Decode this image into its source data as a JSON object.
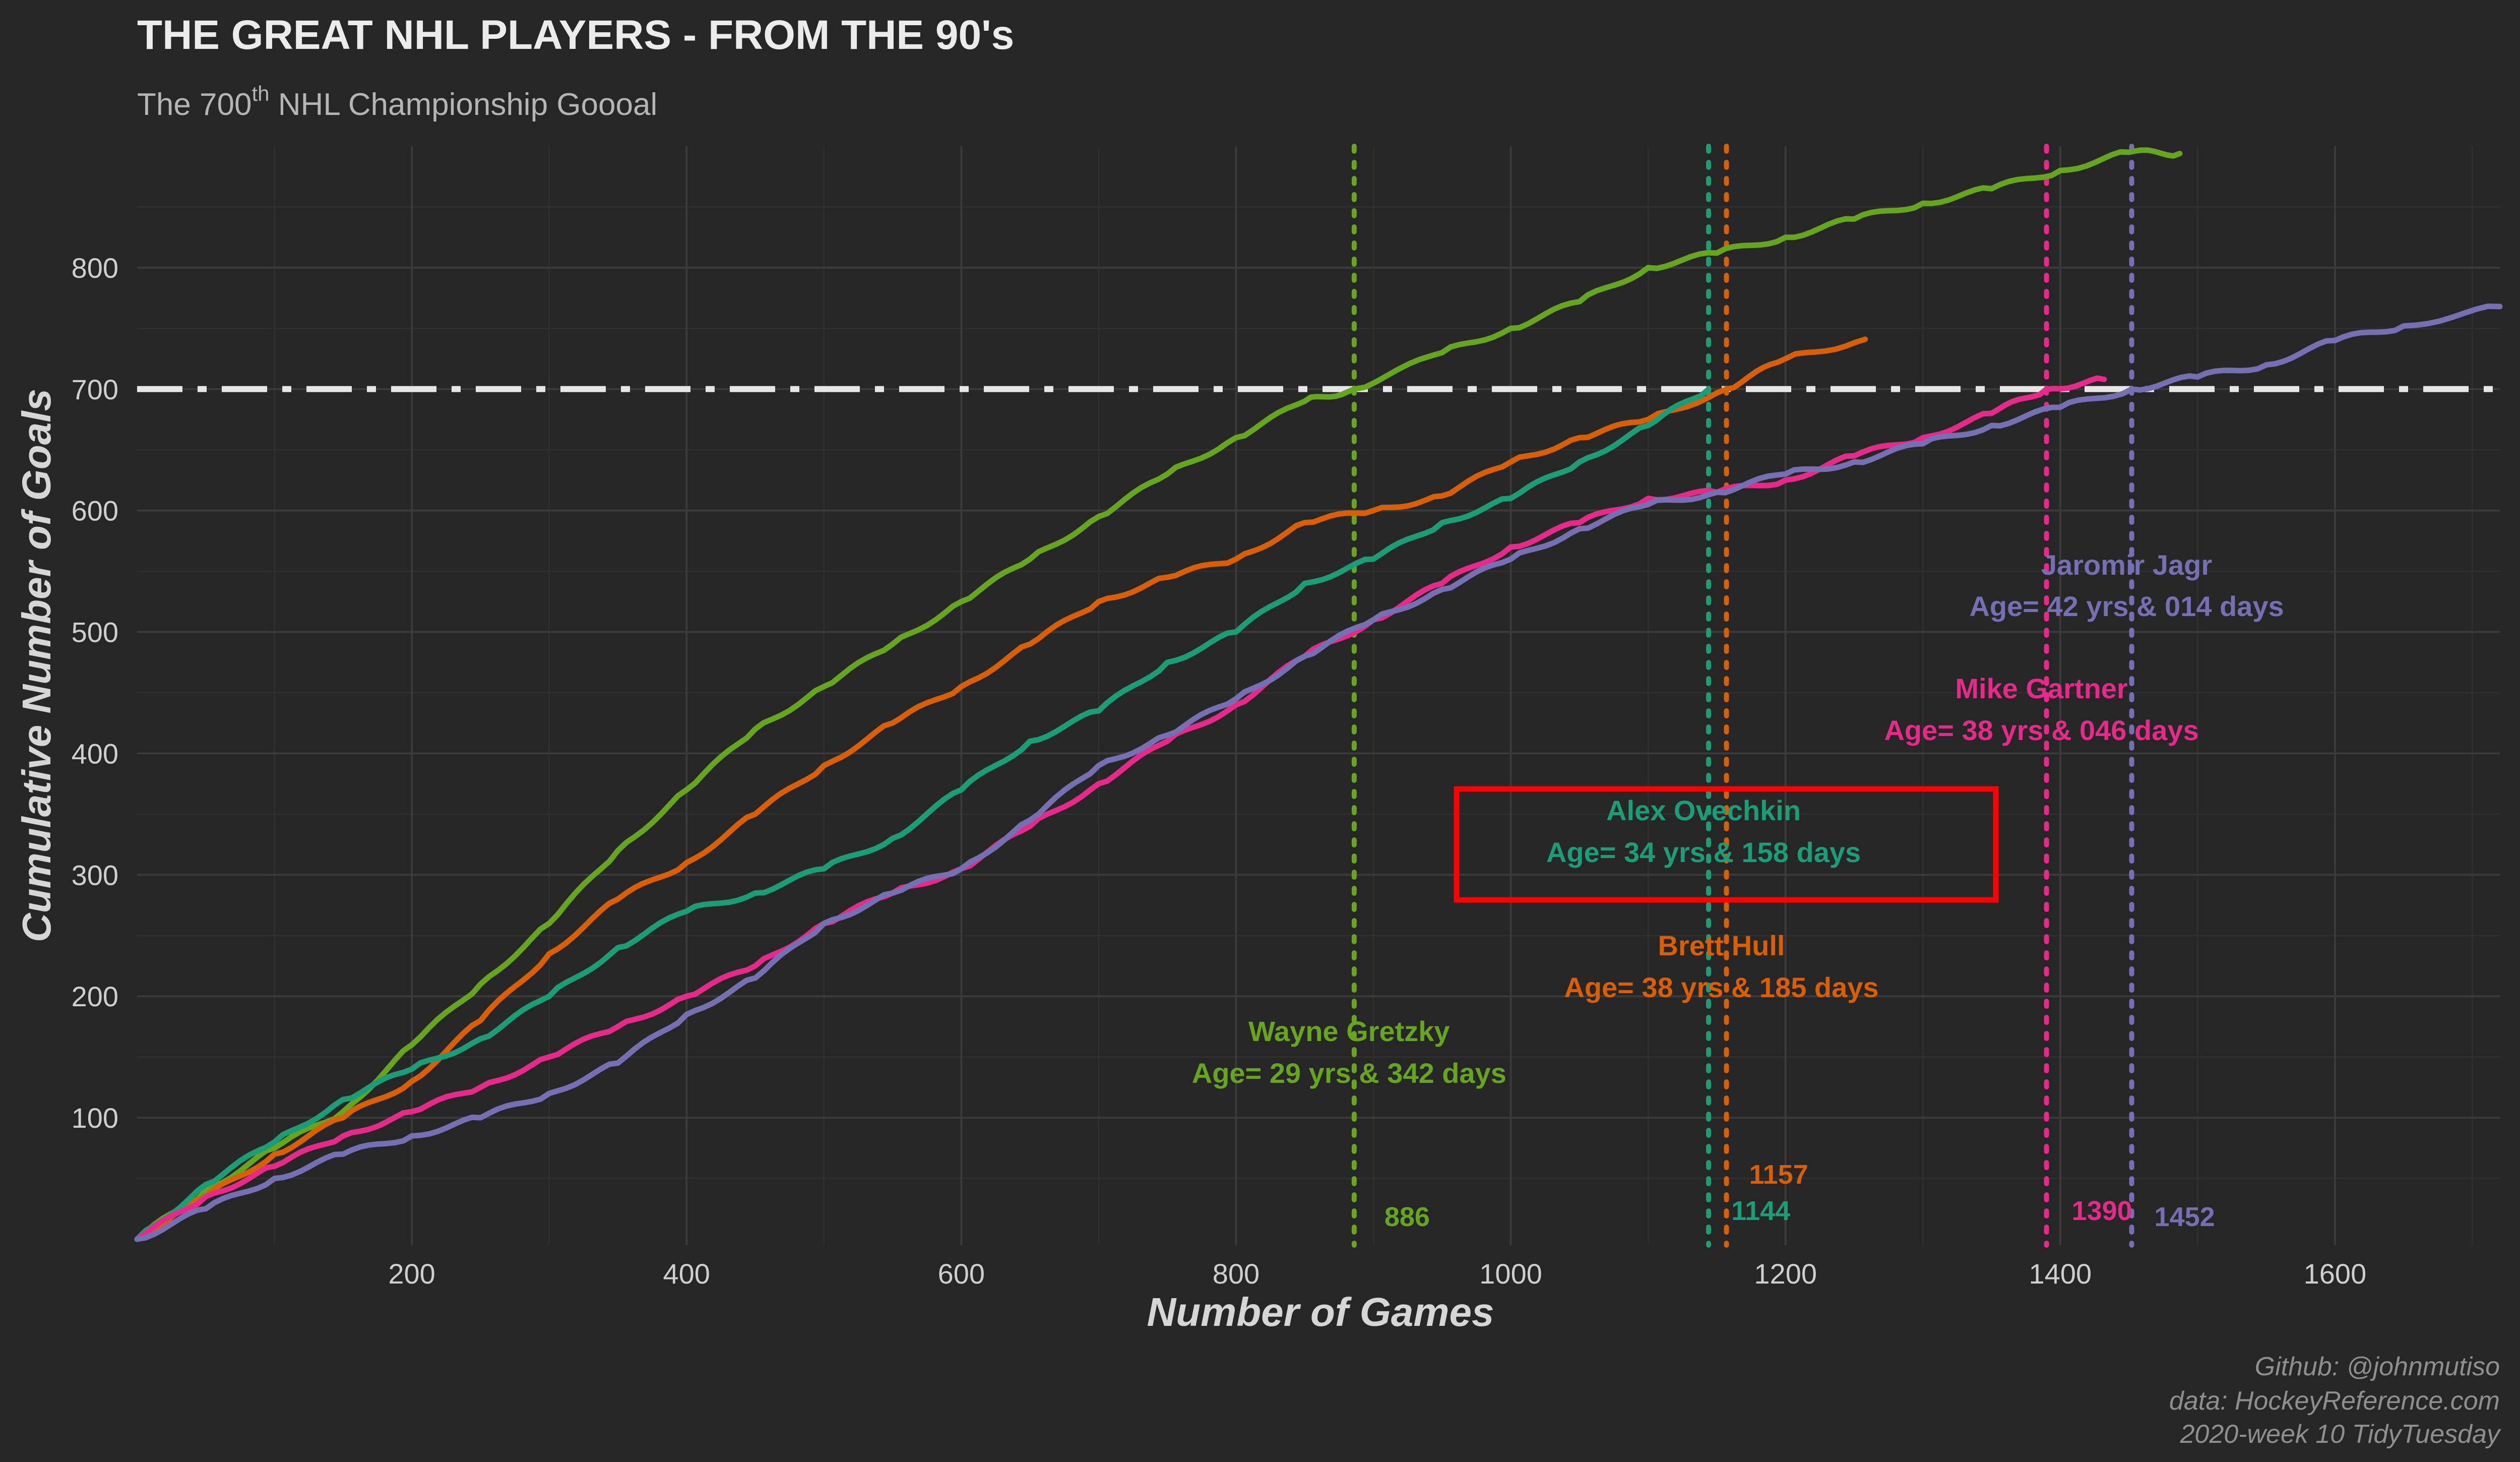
{
  "chart_data": {
    "type": "line",
    "title": "THE GREAT NHL PLAYERS - FROM THE 90's",
    "subtitle": {
      "pre": "The 700",
      "sup": "th",
      "post": " NHL Championship Goooal"
    },
    "xlabel": "Number of Games",
    "ylabel": "Cumulative Number of Goals",
    "xlim": [
      0,
      1720
    ],
    "ylim": [
      -5,
      900
    ],
    "xticks": [
      200,
      400,
      600,
      800,
      1000,
      1200,
      1400,
      1600
    ],
    "yticks": [
      100,
      200,
      300,
      400,
      500,
      600,
      700,
      800
    ],
    "grid": true,
    "reference_line": {
      "y": 700
    },
    "caption": [
      "Github: @johnmutiso",
      "data: HockeyReference.com",
      "2020-week 10 TidyTuesday"
    ],
    "series": [
      {
        "name": "Wayne Gretzky",
        "color": "#66a61e",
        "milestone_game": "886",
        "age_label": "Age= 29 yrs & 342 days",
        "points": [
          [
            0,
            0
          ],
          [
            50,
            40
          ],
          [
            100,
            75
          ],
          [
            150,
            105
          ],
          [
            200,
            160
          ],
          [
            250,
            210
          ],
          [
            300,
            260
          ],
          [
            350,
            320
          ],
          [
            400,
            370
          ],
          [
            450,
            420
          ],
          [
            500,
            455
          ],
          [
            550,
            490
          ],
          [
            600,
            525
          ],
          [
            650,
            560
          ],
          [
            700,
            595
          ],
          [
            750,
            630
          ],
          [
            800,
            660
          ],
          [
            850,
            690
          ],
          [
            886,
            700
          ],
          [
            950,
            730
          ],
          [
            1000,
            750
          ],
          [
            1050,
            772
          ],
          [
            1100,
            800
          ],
          [
            1150,
            812
          ],
          [
            1200,
            825
          ],
          [
            1250,
            840
          ],
          [
            1300,
            853
          ],
          [
            1350,
            865
          ],
          [
            1400,
            880
          ],
          [
            1450,
            895
          ],
          [
            1487,
            894
          ]
        ]
      },
      {
        "name": "Brett Hull",
        "color": "#d95f02",
        "milestone_game": "1157",
        "age_label": "Age= 38 yrs & 185 days",
        "points": [
          [
            0,
            0
          ],
          [
            50,
            35
          ],
          [
            100,
            70
          ],
          [
            150,
            100
          ],
          [
            200,
            130
          ],
          [
            250,
            180
          ],
          [
            300,
            235
          ],
          [
            350,
            280
          ],
          [
            400,
            310
          ],
          [
            450,
            350
          ],
          [
            500,
            390
          ],
          [
            550,
            425
          ],
          [
            600,
            455
          ],
          [
            650,
            490
          ],
          [
            700,
            525
          ],
          [
            750,
            545
          ],
          [
            800,
            560
          ],
          [
            850,
            590
          ],
          [
            900,
            600
          ],
          [
            950,
            612
          ],
          [
            1000,
            640
          ],
          [
            1050,
            660
          ],
          [
            1100,
            675
          ],
          [
            1157,
            700
          ],
          [
            1200,
            725
          ],
          [
            1258,
            741
          ]
        ]
      },
      {
        "name": "Alex Ovechkin",
        "color": "#1b9e77",
        "milestone_game": "1144",
        "age_label": "Age= 34 yrs & 158 days",
        "points": [
          [
            0,
            0
          ],
          [
            50,
            45
          ],
          [
            100,
            80
          ],
          [
            150,
            115
          ],
          [
            200,
            140
          ],
          [
            250,
            165
          ],
          [
            300,
            200
          ],
          [
            350,
            240
          ],
          [
            400,
            270
          ],
          [
            450,
            285
          ],
          [
            500,
            305
          ],
          [
            550,
            330
          ],
          [
            600,
            370
          ],
          [
            650,
            410
          ],
          [
            700,
            435
          ],
          [
            750,
            475
          ],
          [
            800,
            500
          ],
          [
            850,
            540
          ],
          [
            900,
            560
          ],
          [
            950,
            590
          ],
          [
            1000,
            610
          ],
          [
            1050,
            640
          ],
          [
            1100,
            670
          ],
          [
            1144,
            700
          ]
        ]
      },
      {
        "name": "Mike Gartner",
        "color": "#e7298a",
        "milestone_game": "1390",
        "age_label": "Age= 38 yrs & 046 days",
        "points": [
          [
            0,
            0
          ],
          [
            50,
            35
          ],
          [
            100,
            60
          ],
          [
            150,
            85
          ],
          [
            200,
            105
          ],
          [
            250,
            125
          ],
          [
            300,
            150
          ],
          [
            350,
            175
          ],
          [
            400,
            200
          ],
          [
            450,
            225
          ],
          [
            500,
            260
          ],
          [
            550,
            285
          ],
          [
            600,
            305
          ],
          [
            650,
            340
          ],
          [
            700,
            375
          ],
          [
            750,
            410
          ],
          [
            800,
            440
          ],
          [
            850,
            480
          ],
          [
            900,
            510
          ],
          [
            950,
            540
          ],
          [
            1000,
            570
          ],
          [
            1050,
            590
          ],
          [
            1100,
            610
          ],
          [
            1150,
            615
          ],
          [
            1200,
            625
          ],
          [
            1250,
            645
          ],
          [
            1300,
            660
          ],
          [
            1350,
            680
          ],
          [
            1390,
            700
          ],
          [
            1432,
            708
          ]
        ]
      },
      {
        "name": "Jaromir Jagr",
        "color": "#7570b3",
        "milestone_game": "1452",
        "age_label": "Age= 42 yrs & 014 days",
        "points": [
          [
            0,
            0
          ],
          [
            50,
            25
          ],
          [
            100,
            50
          ],
          [
            150,
            70
          ],
          [
            200,
            85
          ],
          [
            250,
            100
          ],
          [
            300,
            120
          ],
          [
            350,
            145
          ],
          [
            400,
            185
          ],
          [
            450,
            215
          ],
          [
            500,
            260
          ],
          [
            550,
            285
          ],
          [
            600,
            305
          ],
          [
            650,
            345
          ],
          [
            700,
            390
          ],
          [
            750,
            415
          ],
          [
            800,
            445
          ],
          [
            850,
            480
          ],
          [
            900,
            510
          ],
          [
            950,
            535
          ],
          [
            1000,
            560
          ],
          [
            1050,
            585
          ],
          [
            1100,
            605
          ],
          [
            1150,
            615
          ],
          [
            1200,
            630
          ],
          [
            1250,
            640
          ],
          [
            1300,
            655
          ],
          [
            1350,
            670
          ],
          [
            1400,
            685
          ],
          [
            1452,
            700
          ],
          [
            1500,
            710
          ],
          [
            1550,
            720
          ],
          [
            1600,
            740
          ],
          [
            1650,
            752
          ],
          [
            1720,
            768
          ]
        ]
      }
    ]
  }
}
